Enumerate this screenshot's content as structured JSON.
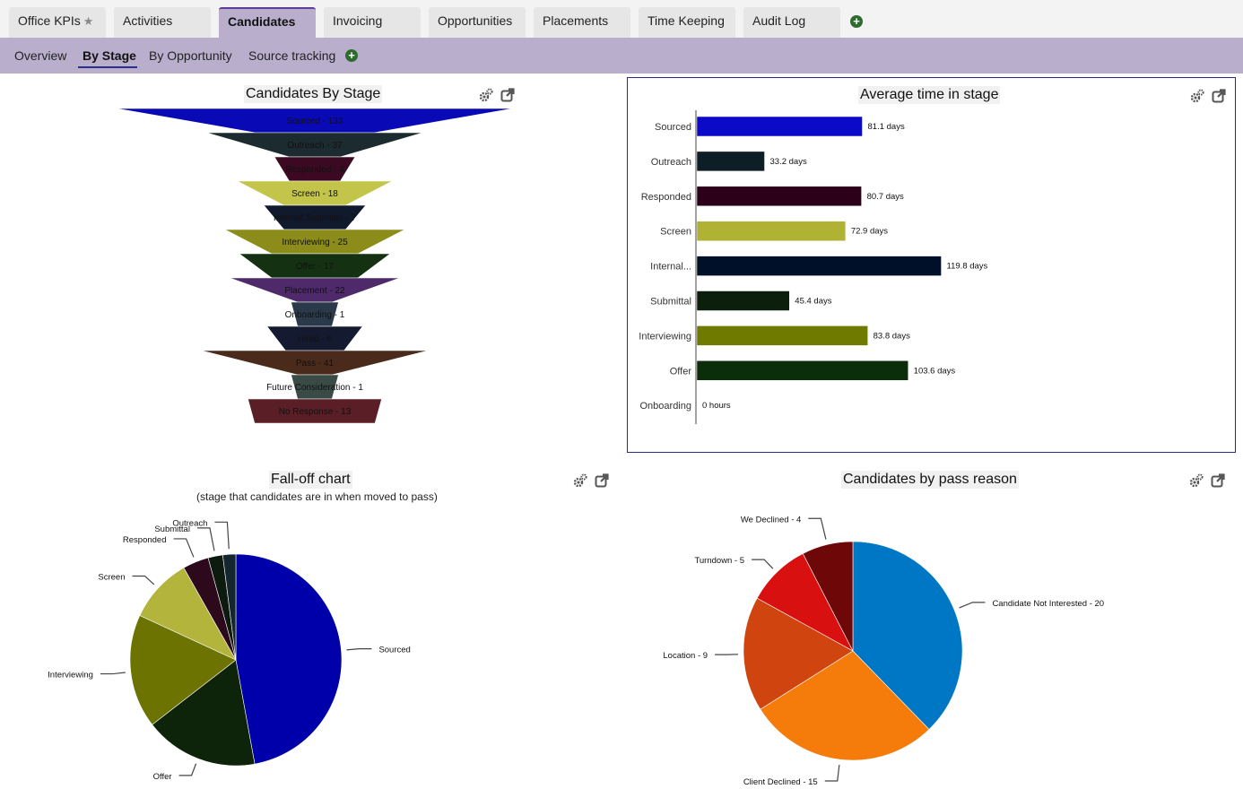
{
  "top_tabs": [
    {
      "label": "Office KPIs",
      "starred": true,
      "active": false
    },
    {
      "label": "Activities",
      "active": false
    },
    {
      "label": "Candidates",
      "active": true
    },
    {
      "label": "Invoicing",
      "active": false
    },
    {
      "label": "Opportunities",
      "active": false
    },
    {
      "label": "Placements",
      "active": false
    },
    {
      "label": "Time Keeping",
      "active": false
    },
    {
      "label": "Audit Log",
      "active": false
    }
  ],
  "sub_nav": [
    {
      "label": "Overview",
      "active": false
    },
    {
      "label": "By Stage",
      "active": true
    },
    {
      "label": "By Opportunity",
      "active": false
    },
    {
      "label": "Source tracking",
      "active": false
    }
  ],
  "panels": {
    "funnel": {
      "title": "Candidates By Stage"
    },
    "bar": {
      "title": "Average time in stage"
    },
    "falloff": {
      "title": "Fall-off chart",
      "subtitle": "(stage that candidates are in when moved to pass)"
    },
    "reasons": {
      "title": "Candidates by pass reason"
    }
  },
  "icons": {
    "settings": "gears-icon",
    "popout": "external-link-icon",
    "add": "plus-circle-icon",
    "star": "star-icon"
  },
  "chart_data": [
    {
      "type": "funnel",
      "title": "Candidates By Stage",
      "stages": [
        {
          "label": "Sourced",
          "value": 133,
          "color": "#0909b5"
        },
        {
          "label": "Outreach",
          "value": 37,
          "color": "#1c2b30"
        },
        {
          "label": "Responded",
          "value": 4,
          "color": "#3b0a22"
        },
        {
          "label": "Screen",
          "value": 18,
          "color": "#c3c54a"
        },
        {
          "label": "Internal Submittal",
          "value": 7,
          "color": "#101a2c"
        },
        {
          "label": "Interviewing",
          "value": 25,
          "color": "#8c8c1a"
        },
        {
          "label": "Offer",
          "value": 17,
          "color": "#143212"
        },
        {
          "label": "Placement",
          "value": 22,
          "color": "#4e2a6b"
        },
        {
          "label": "Onboarding",
          "value": 1,
          "color": "#2a3a4a"
        },
        {
          "label": "Hired",
          "value": 6,
          "color": "#141a30"
        },
        {
          "label": "Pass",
          "value": 41,
          "color": "#4a2a1a"
        },
        {
          "label": "Future Consideration",
          "value": 1,
          "color": "#3a4a44"
        },
        {
          "label": "No Response",
          "value": 13,
          "color": "#5a1e26"
        }
      ]
    },
    {
      "type": "bar",
      "orientation": "horizontal",
      "title": "Average time in stage",
      "categories": [
        "Sourced",
        "Outreach",
        "Responded",
        "Screen",
        "Internal...",
        "Submittal",
        "Interviewing",
        "Offer",
        "Onboarding"
      ],
      "values": [
        81.1,
        33.2,
        80.7,
        72.9,
        119.8,
        45.4,
        83.8,
        103.6,
        0
      ],
      "value_labels": [
        "81.1 days",
        "33.2 days",
        "80.7 days",
        "72.9 days",
        "119.8 days",
        "45.4 days",
        "83.8 days",
        "103.6 days",
        "0 hours"
      ],
      "colors": [
        "#0a0ac8",
        "#0e1e26",
        "#2c0018",
        "#b0b233",
        "#001028",
        "#0c1e0c",
        "#6e7a00",
        "#092e09",
        "#888888"
      ],
      "unit": "days"
    },
    {
      "type": "pie",
      "title": "Fall-off chart",
      "subtitle": "(stage that candidates are in when moved to pass)",
      "slices": [
        {
          "label": "Sourced",
          "value": 19,
          "color": "#0000aa"
        },
        {
          "label": "Offer",
          "value": 7,
          "color": "#0e240a"
        },
        {
          "label": "Interviewing",
          "value": 7,
          "color": "#6d7300"
        },
        {
          "label": "Screen",
          "value": 4,
          "color": "#b2b43c"
        },
        {
          "label": "Responded",
          "value": 1.6,
          "color": "#2c0a1c"
        },
        {
          "label": "Submittal",
          "value": 0.9,
          "color": "#0d1a0e"
        },
        {
          "label": "Outreach",
          "value": 0.8,
          "color": "#142630"
        }
      ]
    },
    {
      "type": "pie",
      "title": "Candidates by pass reason",
      "slices": [
        {
          "label": "Candidate Not Interested - 20",
          "value": 20,
          "color": "#0077c4"
        },
        {
          "label": "Client Declined - 15",
          "value": 15,
          "color": "#f57c0a"
        },
        {
          "label": "Location - 9",
          "value": 9,
          "color": "#d04410"
        },
        {
          "label": "Turndown - 5",
          "value": 5,
          "color": "#d81010"
        },
        {
          "label": "We Declined - 4",
          "value": 4,
          "color": "#6e0808"
        }
      ]
    }
  ]
}
